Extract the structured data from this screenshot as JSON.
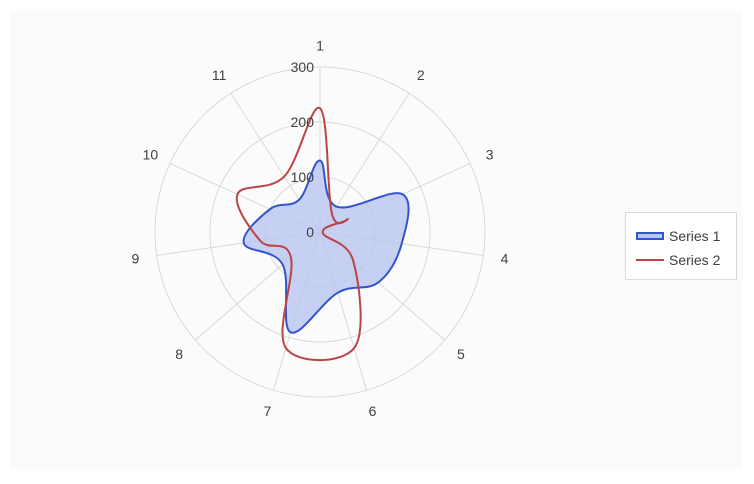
{
  "chart_data": {
    "type": "radar",
    "categories": [
      "1",
      "2",
      "3",
      "4",
      "5",
      "6",
      "7",
      "8",
      "9",
      "10",
      "11"
    ],
    "series": [
      {
        "name": "Series 1",
        "values": [
          130,
          55,
          165,
          150,
          140,
          115,
          190,
          90,
          140,
          100,
          70
        ],
        "color": "#3355cc",
        "fill": "#b8c6f0"
      },
      {
        "name": "Series 2",
        "values": [
          225,
          40,
          55,
          5,
          80,
          220,
          220,
          70,
          110,
          165,
          120
        ],
        "color": "#bb4444",
        "fill": "none"
      }
    ],
    "radial_ticks": [
      "0",
      "100",
      "200",
      "300"
    ],
    "rmax": 300,
    "grid": true,
    "legend_position": "right"
  },
  "legend": {
    "series1_label": "Series 1",
    "series2_label": "Series 2"
  }
}
